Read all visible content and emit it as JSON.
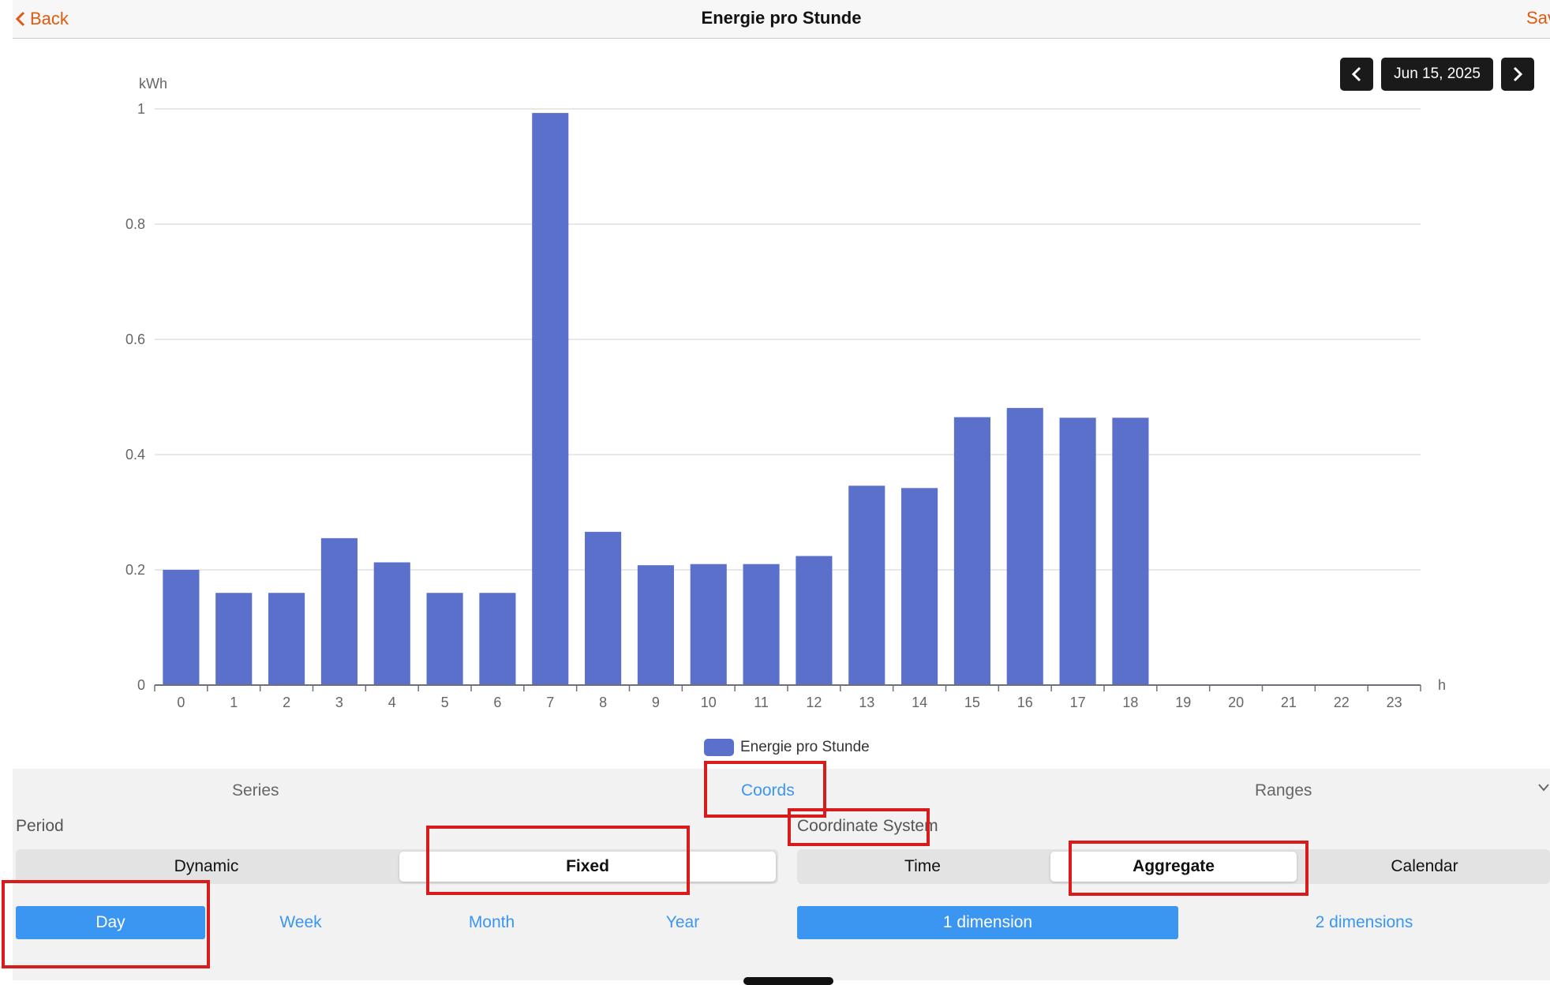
{
  "header": {
    "back_label": "Back",
    "title": "Energie pro Stunde",
    "save_label": "Save"
  },
  "date_nav": {
    "date": "Jun 15, 2025"
  },
  "colors": {
    "accent": "#3b96f2",
    "bar": "#5b70cb",
    "nav_text": "#e05a10",
    "highlight": "#d81b1b"
  },
  "chart_data": {
    "type": "bar",
    "ylabel": "kWh",
    "xlabel": "h",
    "ylim": [
      0,
      1
    ],
    "yticks": [
      "0",
      "0.2",
      "0.4",
      "0.6",
      "0.8",
      "1"
    ],
    "categories": [
      "0",
      "1",
      "2",
      "3",
      "4",
      "5",
      "6",
      "7",
      "8",
      "9",
      "10",
      "11",
      "12",
      "13",
      "14",
      "15",
      "16",
      "17",
      "18",
      "19",
      "20",
      "21",
      "22",
      "23"
    ],
    "series": [
      {
        "name": "Energie pro Stunde",
        "values": [
          0.2,
          0.16,
          0.16,
          0.255,
          0.213,
          0.16,
          0.16,
          0.993,
          0.266,
          0.208,
          0.21,
          0.21,
          0.224,
          0.346,
          0.342,
          0.465,
          0.481,
          0.464,
          0.464,
          0,
          0,
          0,
          0,
          0
        ]
      }
    ],
    "grid": true,
    "legend": "bottom-center"
  },
  "tabs": [
    {
      "label": "Series"
    },
    {
      "label": "Coords",
      "active": true
    },
    {
      "label": "Ranges"
    }
  ],
  "period": {
    "label": "Period",
    "modes": [
      {
        "label": "Dynamic"
      },
      {
        "label": "Fixed",
        "selected": true
      }
    ],
    "ranges": [
      {
        "label": "Day",
        "selected": true
      },
      {
        "label": "Week"
      },
      {
        "label": "Month"
      },
      {
        "label": "Year"
      }
    ]
  },
  "coordinate_system": {
    "label": "Coordinate System",
    "types": [
      {
        "label": "Time"
      },
      {
        "label": "Aggregate",
        "selected": true
      },
      {
        "label": "Calendar"
      }
    ],
    "dimensions": [
      {
        "label": "1 dimension",
        "selected": true
      },
      {
        "label": "2 dimensions"
      }
    ]
  }
}
